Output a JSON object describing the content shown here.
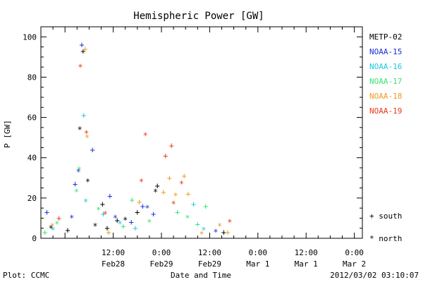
{
  "chart_data": {
    "type": "scatter",
    "title": "Hemispheric Power [GW]",
    "ylabel": "P [GW]",
    "xlabel": "Date and Time",
    "ylim": [
      0,
      105
    ],
    "xlim": [
      "2012-02-27 18:00",
      "2012-03-02 02:00"
    ],
    "yticks": [
      0,
      20,
      40,
      60,
      80,
      100
    ],
    "xtick_labels": [
      {
        "x": "2012-02-28 12:00",
        "time": "12:00",
        "date": "Feb28"
      },
      {
        "x": "2012-02-29 00:00",
        "time": "0:00",
        "date": "Feb29"
      },
      {
        "x": "2012-02-29 12:00",
        "time": "12:00",
        "date": "Feb29"
      },
      {
        "x": "2012-03-01 00:00",
        "time": "0:00",
        "date": "Mar 1"
      },
      {
        "x": "2012-03-01 12:00",
        "time": "12:00",
        "date": "Mar 1"
      },
      {
        "x": "2012-03-02 00:00",
        "time": "0:00",
        "date": "Mar 2"
      }
    ],
    "marker_legend": [
      {
        "symbol": "+",
        "label": "south"
      },
      {
        "symbol": "*",
        "label": "north"
      }
    ],
    "series": [
      {
        "name": "METP-02",
        "color": "#000000",
        "points": [
          {
            "x": "2012-02-28 04:30",
            "y": 93,
            "hemi": "south"
          },
          {
            "x": "2012-02-28 03:40",
            "y": 55,
            "hemi": "north"
          },
          {
            "x": "2012-02-28 05:40",
            "y": 29,
            "hemi": "north"
          },
          {
            "x": "2012-02-28 07:30",
            "y": 7,
            "hemi": "north"
          },
          {
            "x": "2012-02-28 09:20",
            "y": 17,
            "hemi": "south"
          },
          {
            "x": "2012-02-28 10:30",
            "y": 5,
            "hemi": "south"
          },
          {
            "x": "2012-02-28 13:00",
            "y": 9,
            "hemi": "south"
          },
          {
            "x": "2012-02-28 15:00",
            "y": 10,
            "hemi": "north"
          },
          {
            "x": "2012-02-28 18:00",
            "y": 13,
            "hemi": "south"
          },
          {
            "x": "2012-02-28 22:30",
            "y": 24,
            "hemi": "north"
          },
          {
            "x": "2012-02-28 23:00",
            "y": 26,
            "hemi": "south"
          },
          {
            "x": "2012-02-28 00:40",
            "y": 4,
            "hemi": "south"
          },
          {
            "x": "2012-02-27 20:30",
            "y": 6,
            "hemi": "north"
          },
          {
            "x": "2012-02-29 15:30",
            "y": 3,
            "hemi": "south"
          }
        ]
      },
      {
        "name": "NOAA-15",
        "color": "#1a2fd6",
        "points": [
          {
            "x": "2012-02-28 04:10",
            "y": 96,
            "hemi": "south"
          },
          {
            "x": "2012-02-28 03:20",
            "y": 34,
            "hemi": "north"
          },
          {
            "x": "2012-02-28 02:30",
            "y": 27,
            "hemi": "south"
          },
          {
            "x": "2012-02-28 06:50",
            "y": 44,
            "hemi": "south"
          },
          {
            "x": "2012-02-28 01:40",
            "y": 11,
            "hemi": "north"
          },
          {
            "x": "2012-02-28 11:10",
            "y": 21,
            "hemi": "south"
          },
          {
            "x": "2012-02-28 12:30",
            "y": 11,
            "hemi": "north"
          },
          {
            "x": "2012-02-28 16:30",
            "y": 8,
            "hemi": "south"
          },
          {
            "x": "2012-02-28 19:20",
            "y": 16,
            "hemi": "south"
          },
          {
            "x": "2012-02-28 20:30",
            "y": 16,
            "hemi": "north"
          },
          {
            "x": "2012-02-28 22:00",
            "y": 12,
            "hemi": "south"
          },
          {
            "x": "2012-02-29 13:30",
            "y": 4,
            "hemi": "north"
          },
          {
            "x": "2012-02-27 19:30",
            "y": 13,
            "hemi": "south"
          }
        ]
      },
      {
        "name": "NOAA-16",
        "color": "#22c6e0",
        "points": [
          {
            "x": "2012-02-28 04:40",
            "y": 61,
            "hemi": "south"
          },
          {
            "x": "2012-02-28 05:10",
            "y": 19,
            "hemi": "north"
          },
          {
            "x": "2012-02-28 09:30",
            "y": 12,
            "hemi": "south"
          },
          {
            "x": "2012-02-28 13:40",
            "y": 8,
            "hemi": "north"
          },
          {
            "x": "2012-02-28 17:30",
            "y": 5,
            "hemi": "south"
          },
          {
            "x": "2012-02-29 08:00",
            "y": 17,
            "hemi": "south"
          },
          {
            "x": "2012-02-29 10:30",
            "y": 5,
            "hemi": "north"
          },
          {
            "x": "2012-02-27 21:00",
            "y": 5,
            "hemi": "north"
          }
        ]
      },
      {
        "name": "NOAA-17",
        "color": "#3ee07a",
        "points": [
          {
            "x": "2012-02-28 03:30",
            "y": 35,
            "hemi": "north"
          },
          {
            "x": "2012-02-28 02:50",
            "y": 24,
            "hemi": "north"
          },
          {
            "x": "2012-02-28 08:20",
            "y": 15,
            "hemi": "north"
          },
          {
            "x": "2012-02-28 14:30",
            "y": 6,
            "hemi": "south"
          },
          {
            "x": "2012-02-28 16:40",
            "y": 19,
            "hemi": "south"
          },
          {
            "x": "2012-02-28 21:00",
            "y": 9,
            "hemi": "north"
          },
          {
            "x": "2012-02-29 04:00",
            "y": 13,
            "hemi": "south"
          },
          {
            "x": "2012-02-29 06:30",
            "y": 11,
            "hemi": "north"
          },
          {
            "x": "2012-02-29 09:00",
            "y": 7,
            "hemi": "south"
          },
          {
            "x": "2012-02-29 11:00",
            "y": 16,
            "hemi": "south"
          },
          {
            "x": "2012-02-27 19:00",
            "y": 3,
            "hemi": "south"
          },
          {
            "x": "2012-02-27 22:00",
            "y": 8,
            "hemi": "north"
          }
        ]
      },
      {
        "name": "NOAA-18",
        "color": "#f09a1e",
        "points": [
          {
            "x": "2012-02-28 05:00",
            "y": 94,
            "hemi": "south"
          },
          {
            "x": "2012-02-28 05:30",
            "y": 51,
            "hemi": "north"
          },
          {
            "x": "2012-02-28 18:30",
            "y": 18,
            "hemi": "south"
          },
          {
            "x": "2012-02-29 00:30",
            "y": 23,
            "hemi": "south"
          },
          {
            "x": "2012-02-29 02:00",
            "y": 30,
            "hemi": "south"
          },
          {
            "x": "2012-02-29 03:30",
            "y": 22,
            "hemi": "north"
          },
          {
            "x": "2012-02-29 05:40",
            "y": 31,
            "hemi": "south"
          },
          {
            "x": "2012-02-29 06:40",
            "y": 22,
            "hemi": "south"
          },
          {
            "x": "2012-02-29 10:00",
            "y": 3,
            "hemi": "north"
          },
          {
            "x": "2012-02-29 14:30",
            "y": 7,
            "hemi": "north"
          },
          {
            "x": "2012-02-29 16:30",
            "y": 3,
            "hemi": "south"
          },
          {
            "x": "2012-02-28 10:50",
            "y": 3,
            "hemi": "south"
          },
          {
            "x": "2012-02-27 20:50",
            "y": 7,
            "hemi": "north"
          }
        ]
      },
      {
        "name": "NOAA-19",
        "color": "#e8391c",
        "points": [
          {
            "x": "2012-02-28 03:50",
            "y": 86,
            "hemi": "north"
          },
          {
            "x": "2012-02-28 05:20",
            "y": 53,
            "hemi": "north"
          },
          {
            "x": "2012-02-28 10:00",
            "y": 13,
            "hemi": "north"
          },
          {
            "x": "2012-02-28 20:00",
            "y": 52,
            "hemi": "north"
          },
          {
            "x": "2012-02-28 19:00",
            "y": 29,
            "hemi": "north"
          },
          {
            "x": "2012-02-29 01:00",
            "y": 41,
            "hemi": "south"
          },
          {
            "x": "2012-02-29 02:30",
            "y": 46,
            "hemi": "south"
          },
          {
            "x": "2012-02-29 03:00",
            "y": 18,
            "hemi": "north"
          },
          {
            "x": "2012-02-29 05:00",
            "y": 28,
            "hemi": "north"
          },
          {
            "x": "2012-02-29 17:00",
            "y": 9,
            "hemi": "north"
          },
          {
            "x": "2012-02-27 22:30",
            "y": 10,
            "hemi": "south"
          }
        ]
      }
    ]
  },
  "footer": {
    "left": "Plot: CCMC",
    "center": "Date and Time",
    "right": "2012/03/02 03:10:07"
  }
}
